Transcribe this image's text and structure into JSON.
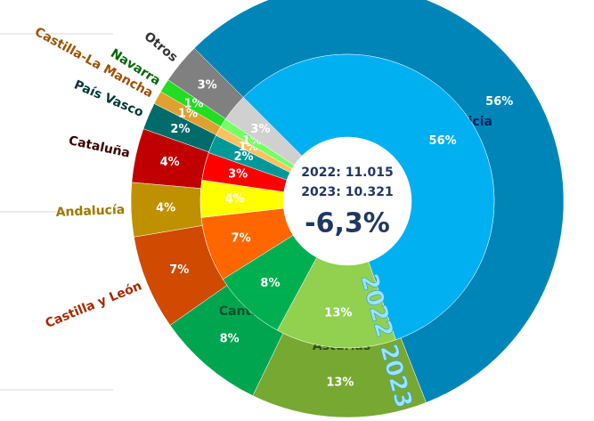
{
  "chart_data": {
    "type": "donut",
    "categories": [
      "Galicia",
      "Asturias",
      "Cantabria",
      "Castilla y León",
      "Andalucía",
      "Cataluña",
      "País Vasco",
      "Castilla-La Mancha",
      "Navarra",
      "Otros"
    ],
    "label_colors": [
      "#002060",
      "#2f4f14",
      "#00502a",
      "#a52a00",
      "#a07800",
      "#3b0000",
      "#003838",
      "#a05000",
      "#006600",
      "#333333"
    ],
    "series": [
      {
        "name": "2023",
        "values": [
          56,
          13,
          8,
          7,
          4,
          4,
          2,
          1,
          1,
          3
        ],
        "value_labels": [
          "56%",
          "13%",
          "8%",
          "7%",
          "4%",
          "4%",
          "2%",
          "1%",
          "1%",
          "3%"
        ],
        "colors": [
          "#0085b8",
          "#77a832",
          "#00a550",
          "#d04a02",
          "#bf9000",
          "#c00000",
          "#006b6b",
          "#e0a030",
          "#22dd22",
          "#808080"
        ]
      },
      {
        "name": "2022",
        "values": [
          56,
          13,
          8,
          7,
          4,
          3,
          2,
          1,
          1,
          3
        ],
        "value_labels": [
          "56%",
          "13%",
          "8%",
          "7%",
          "4%",
          "3%",
          "2%",
          "1%",
          "1%",
          "3%"
        ],
        "colors": [
          "#00b0f0",
          "#92d050",
          "#00b050",
          "#ff6600",
          "#ffff00",
          "#ff0000",
          "#009999",
          "#ffc060",
          "#77ff66",
          "#d0d0d0"
        ]
      }
    ],
    "annotations": [
      "2022: 11.015",
      "2023: 10.321",
      "-6,3%"
    ]
  }
}
